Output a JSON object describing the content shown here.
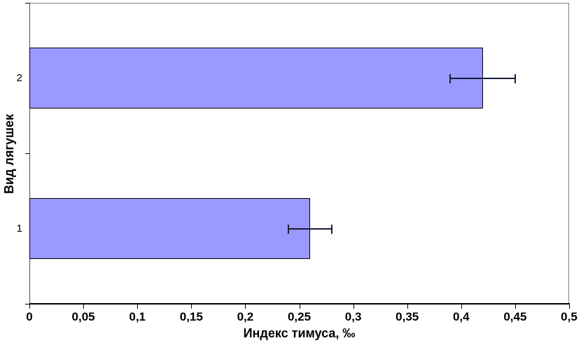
{
  "chart_data": {
    "type": "bar",
    "orientation": "horizontal",
    "title": "",
    "categories": [
      "1",
      "2"
    ],
    "values": [
      0.26,
      0.42
    ],
    "errors": [
      0.02,
      0.03
    ],
    "xlabel": "Индекс тимуса, ‰",
    "ylabel": "Вид лягушек",
    "xlim": [
      0,
      0.5
    ],
    "x_tick_step": 0.05,
    "x_tick_labels": [
      "0",
      "0,05",
      "0,1",
      "0,15",
      "0,2",
      "0,25",
      "0,3",
      "0,35",
      "0,4",
      "0,45",
      "0,5"
    ],
    "grid": false,
    "legend": false,
    "bar_color": "#9999FF",
    "bar_border_color": "#000000",
    "error_bar_color": "#1a1a3a",
    "axis_color": "#000000",
    "plot_border_color": "#808080",
    "background_color": "#ffffff"
  }
}
